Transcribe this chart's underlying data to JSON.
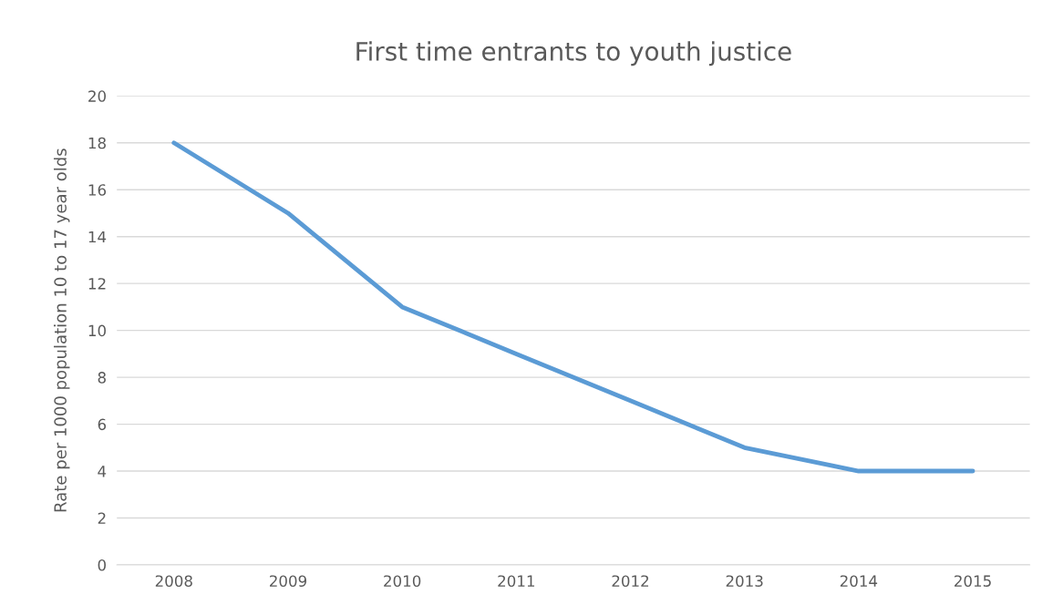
{
  "chart_data": {
    "type": "line",
    "title": "First time entrants to youth justice",
    "ylabel": "Rate per 1000 population 10 to 17 year olds",
    "categories": [
      "2008",
      "2009",
      "2010",
      "2011",
      "2012",
      "2013",
      "2014",
      "2015"
    ],
    "series": [
      {
        "color": "#5b9bd5",
        "values": [
          18,
          15,
          11,
          9,
          7,
          5,
          4,
          4
        ]
      }
    ],
    "ylim": [
      0,
      20
    ],
    "yticks": [
      0,
      2,
      4,
      6,
      8,
      10,
      12,
      14,
      16,
      18,
      20
    ],
    "grid": "y",
    "marker": "none",
    "line_style": "solid"
  }
}
